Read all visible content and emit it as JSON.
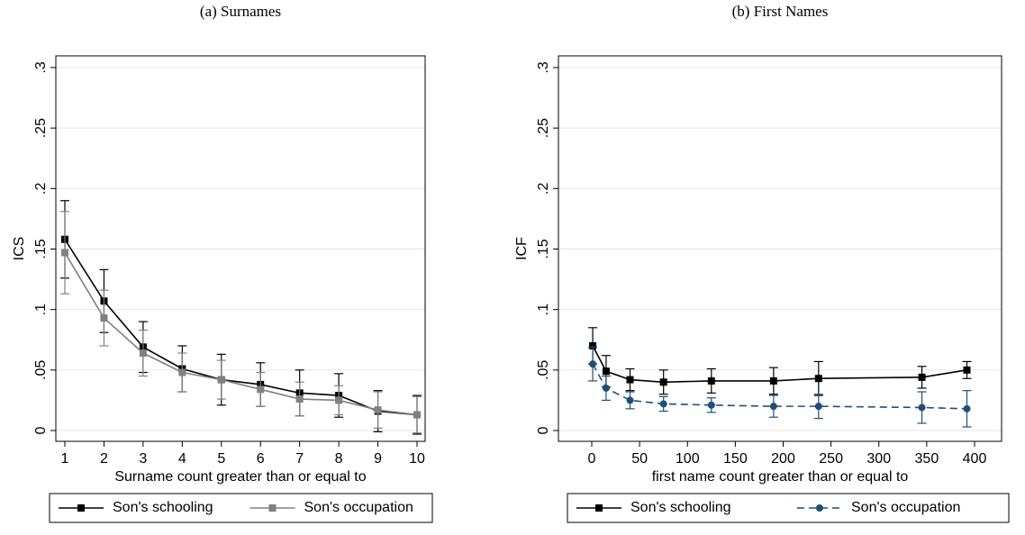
{
  "chart_data": [
    {
      "type": "line",
      "title": "(a) Surnames",
      "xlabel": "Surname count greater than or equal to",
      "ylabel": "ICS",
      "x": [
        1,
        2,
        3,
        4,
        5,
        6,
        7,
        8,
        9,
        10
      ],
      "series": [
        {
          "name": "Son's schooling",
          "color": "#000000",
          "marker": "square",
          "linestyle": "solid",
          "values": [
            0.158,
            0.107,
            0.069,
            0.051,
            0.042,
            0.038,
            0.031,
            0.029,
            0.016,
            0.013
          ],
          "errors": [
            0.032,
            0.026,
            0.021,
            0.019,
            0.021,
            0.018,
            0.019,
            0.018,
            0.017,
            0.016
          ]
        },
        {
          "name": "Son's occupation",
          "color": "#808080",
          "marker": "square",
          "linestyle": "solid",
          "values": [
            0.147,
            0.093,
            0.064,
            0.048,
            0.042,
            0.034,
            0.026,
            0.025,
            0.017,
            0.013
          ],
          "errors": [
            0.034,
            0.023,
            0.019,
            0.016,
            0.016,
            0.014,
            0.014,
            0.012,
            0.015,
            0.015
          ]
        }
      ],
      "xlim": [
        1,
        10
      ],
      "xticks": [
        1,
        2,
        3,
        4,
        5,
        6,
        7,
        8,
        9,
        10
      ],
      "ylim": [
        0,
        0.3
      ],
      "yticks": [
        0,
        {
          "value": 0.05,
          "label": ".05"
        },
        {
          "value": 0.1,
          "label": ".1"
        },
        {
          "value": 0.15,
          "label": ".15"
        },
        {
          "value": 0.2,
          "label": ".2"
        },
        {
          "value": 0.25,
          "label": ".25"
        },
        {
          "value": 0.3,
          "label": ".3"
        }
      ],
      "grid": true,
      "legend": "bottom"
    },
    {
      "type": "line",
      "title": "(b) First Names",
      "xlabel": "first name count greater than or equal to",
      "ylabel": "ICF",
      "x": [
        1,
        15,
        40,
        75,
        125,
        190,
        237,
        345,
        392
      ],
      "series": [
        {
          "name": "Son's schooling",
          "color": "#000000",
          "marker": "square",
          "linestyle": "solid",
          "values": [
            0.07,
            0.049,
            0.042,
            0.04,
            0.041,
            0.041,
            0.043,
            0.044,
            0.05
          ],
          "errors": [
            0.015,
            0.013,
            0.009,
            0.01,
            0.01,
            0.011,
            0.014,
            0.009,
            0.007
          ]
        },
        {
          "name": "Son's occupation",
          "color": "#1f4e79",
          "marker": "circle",
          "linestyle": "dashed",
          "values": [
            0.055,
            0.035,
            0.025,
            0.022,
            0.021,
            0.02,
            0.02,
            0.019,
            0.018
          ],
          "errors": [
            0.014,
            0.01,
            0.007,
            0.006,
            0.006,
            0.009,
            0.01,
            0.013,
            0.015
          ]
        }
      ],
      "xlim": [
        0,
        400
      ],
      "xticks": [
        0,
        50,
        100,
        150,
        200,
        250,
        300,
        350,
        400
      ],
      "ylim": [
        0,
        0.3
      ],
      "yticks": [
        0,
        {
          "value": 0.05,
          "label": ".05"
        },
        {
          "value": 0.1,
          "label": ".1"
        },
        {
          "value": 0.15,
          "label": ".15"
        },
        {
          "value": 0.2,
          "label": ".2"
        },
        {
          "value": 0.25,
          "label": ".25"
        },
        {
          "value": 0.3,
          "label": ".3"
        }
      ],
      "grid": true,
      "legend": "bottom"
    }
  ]
}
